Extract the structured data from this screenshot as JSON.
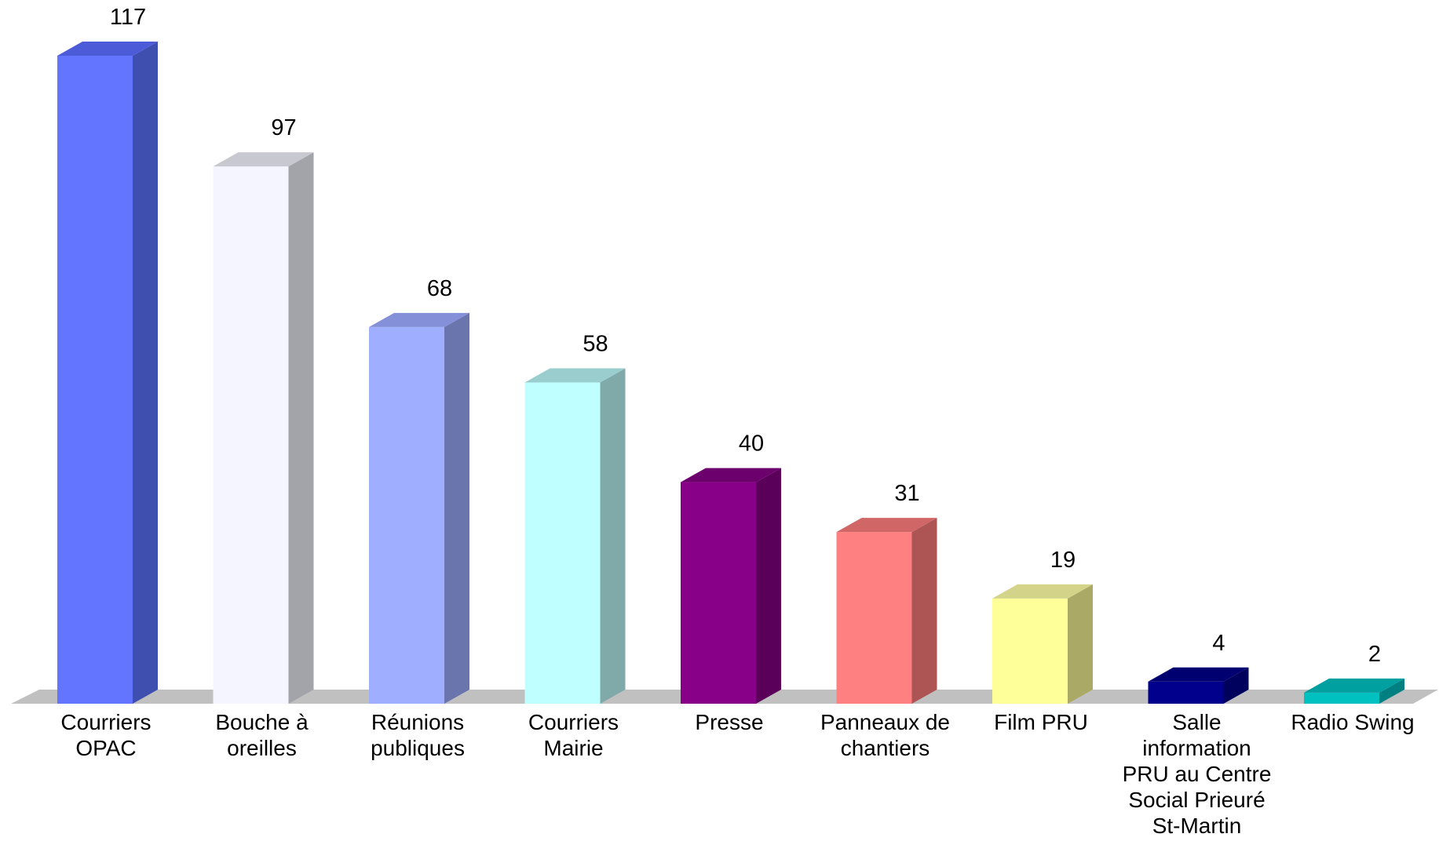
{
  "chart_data": {
    "type": "bar",
    "style": "3d",
    "title": "",
    "xlabel": "",
    "ylabel": "",
    "ylim": [
      0,
      117
    ],
    "grid": false,
    "legend": "none",
    "categories": [
      [
        "Courriers",
        "OPAC"
      ],
      [
        "Bouche à",
        "oreilles"
      ],
      [
        "Réunions",
        "publiques"
      ],
      [
        "Courriers",
        "Mairie"
      ],
      [
        "Presse"
      ],
      [
        "Panneaux de",
        "chantiers"
      ],
      [
        "Film PRU"
      ],
      [
        "Salle",
        "information",
        "PRU au Centre",
        "Social Prieuré",
        "St-Martin"
      ],
      [
        "Radio Swing"
      ]
    ],
    "values": [
      117,
      97,
      68,
      58,
      40,
      31,
      19,
      4,
      2
    ],
    "colors": {
      "front": [
        "#6375FF",
        "#F5F5FF",
        "#A0AEFF",
        "#C0FFFF",
        "#880088",
        "#FF8080",
        "#FFFF99",
        "#00008C",
        "#00C0C0"
      ],
      "side": [
        "#3F4FB0",
        "#A3A3AA",
        "#6A75AD",
        "#80AAAA",
        "#5A005A",
        "#AD5555",
        "#AAAA66",
        "#00005D",
        "#008080"
      ],
      "top": [
        "#4C5CD9",
        "#C8C8D0",
        "#8490D8",
        "#9ACECE",
        "#6C006C",
        "#D06666",
        "#D3D38A",
        "#000070",
        "#00A0A0"
      ],
      "floor": "#C0C0C0"
    }
  }
}
